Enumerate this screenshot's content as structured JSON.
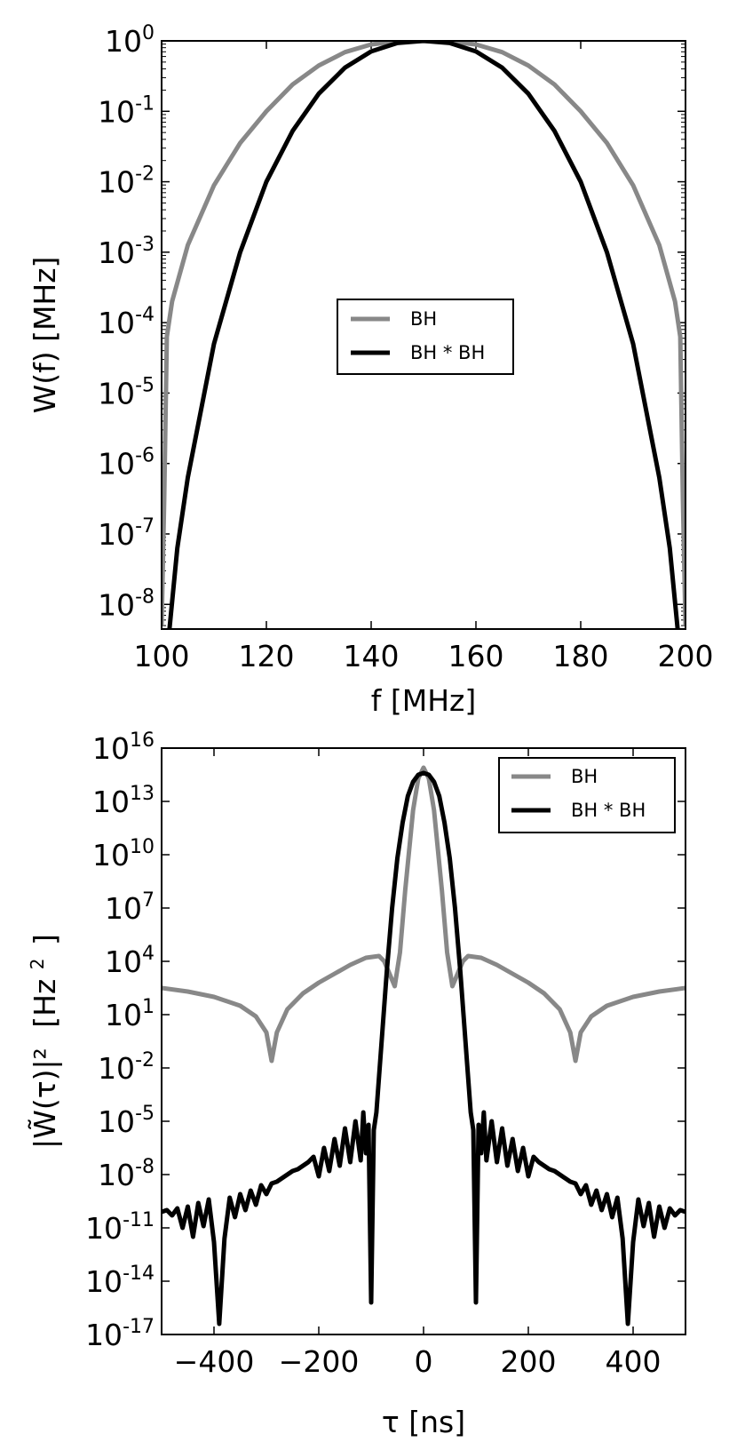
{
  "chart_data": [
    {
      "type": "line",
      "xlabel": "f [MHz]",
      "ylabel": "W(f) [MHz]",
      "xlim": [
        100,
        200
      ],
      "yscale": "log",
      "ylim_exponents": [
        -8.35,
        0
      ],
      "x_ticks": [
        "100",
        "120",
        "140",
        "160",
        "180",
        "200"
      ],
      "y_ticks": [
        {
          "base": "10",
          "exp": "0"
        },
        {
          "base": "10",
          "exp": "-1"
        },
        {
          "base": "10",
          "exp": "-2"
        },
        {
          "base": "10",
          "exp": "-3"
        },
        {
          "base": "10",
          "exp": "-4"
        },
        {
          "base": "10",
          "exp": "-5"
        },
        {
          "base": "10",
          "exp": "-6"
        },
        {
          "base": "10",
          "exp": "-7"
        },
        {
          "base": "10",
          "exp": "-8"
        }
      ],
      "legend_position": "center",
      "series": [
        {
          "name": "BH",
          "color": "#888888",
          "x": [
            100,
            100.5,
            101,
            102,
            105,
            110,
            115,
            120,
            125,
            130,
            135,
            140,
            145,
            150,
            155,
            160,
            165,
            170,
            175,
            180,
            185,
            190,
            195,
            198,
            199,
            199.5,
            200
          ],
          "log10_y": [
            -8.3,
            -6.5,
            -4.2,
            -3.7,
            -2.9,
            -2.05,
            -1.45,
            -1.0,
            -0.62,
            -0.35,
            -0.16,
            -0.05,
            -0.01,
            0,
            -0.01,
            -0.05,
            -0.16,
            -0.35,
            -0.62,
            -1.0,
            -1.45,
            -2.05,
            -2.9,
            -3.7,
            -4.2,
            -6.5,
            -8.3
          ]
        },
        {
          "name": "BH * BH",
          "color": "#000000",
          "x": [
            101.5,
            103,
            105,
            110,
            115,
            120,
            125,
            130,
            135,
            140,
            145,
            150,
            155,
            160,
            165,
            170,
            175,
            180,
            185,
            190,
            195,
            197,
            198.5
          ],
          "log10_y": [
            -8.35,
            -7.2,
            -6.2,
            -4.3,
            -3.0,
            -2.0,
            -1.28,
            -0.75,
            -0.38,
            -0.15,
            -0.03,
            0,
            -0.03,
            -0.15,
            -0.38,
            -0.75,
            -1.28,
            -2.0,
            -3.0,
            -4.3,
            -6.2,
            -7.2,
            -8.35
          ]
        }
      ]
    },
    {
      "type": "line",
      "xlabel": "τ [ns]",
      "ylabel_expr": "|W̃(τ)|²",
      "ylabel_unit": "[Hz",
      "ylabel_unit_exp": "2",
      "ylabel_unit_close": "]",
      "xlim": [
        -500,
        500
      ],
      "yscale": "log",
      "ylim_exponents": [
        -17,
        16
      ],
      "x_ticks": [
        "−400",
        "−200",
        "0",
        "200",
        "400"
      ],
      "y_ticks": [
        {
          "base": "10",
          "exp": "16"
        },
        {
          "base": "10",
          "exp": "13"
        },
        {
          "base": "10",
          "exp": "10"
        },
        {
          "base": "10",
          "exp": "7"
        },
        {
          "base": "10",
          "exp": "4"
        },
        {
          "base": "10",
          "exp": "1"
        },
        {
          "base": "10",
          "exp": "-2"
        },
        {
          "base": "10",
          "exp": "-5"
        },
        {
          "base": "10",
          "exp": "-8"
        },
        {
          "base": "10",
          "exp": "-11"
        },
        {
          "base": "10",
          "exp": "-14"
        },
        {
          "base": "10",
          "exp": "-17"
        }
      ],
      "legend_position": "upper right",
      "series": [
        {
          "name": "BH",
          "color": "#888888",
          "x": [
            -500,
            -450,
            -400,
            -350,
            -320,
            -300,
            -290,
            -280,
            -260,
            -230,
            -200,
            -170,
            -140,
            -110,
            -85,
            -75,
            -65,
            -55,
            -45,
            -35,
            -20,
            -10,
            0,
            10,
            20,
            35,
            45,
            55,
            65,
            75,
            85,
            110,
            140,
            170,
            200,
            230,
            260,
            280,
            290,
            300,
            320,
            350,
            400,
            450,
            500
          ],
          "log10_y": [
            2.5,
            2.3,
            2.0,
            1.5,
            0.9,
            0.0,
            -1.6,
            0.0,
            1.3,
            2.2,
            2.8,
            3.3,
            3.8,
            4.2,
            4.3,
            4.0,
            3.3,
            2.6,
            4.5,
            8.0,
            12.5,
            14.3,
            14.9,
            14.3,
            12.5,
            8.0,
            4.5,
            2.6,
            3.3,
            4.0,
            4.3,
            4.2,
            3.8,
            3.3,
            2.8,
            2.2,
            1.3,
            0.0,
            -1.6,
            0.0,
            0.9,
            1.5,
            2.0,
            2.3,
            2.5
          ]
        },
        {
          "name": "BH * BH",
          "color": "#000000",
          "x": [
            -500,
            -490,
            -480,
            -470,
            -460,
            -450,
            -440,
            -430,
            -420,
            -410,
            -400,
            -390,
            -380,
            -370,
            -360,
            -350,
            -340,
            -330,
            -320,
            -310,
            -300,
            -290,
            -280,
            -270,
            -260,
            -250,
            -240,
            -230,
            -220,
            -210,
            -200,
            -190,
            -180,
            -170,
            -160,
            -150,
            -140,
            -130,
            -120,
            -115,
            -110,
            -105,
            -100,
            -95,
            -90,
            -80,
            -70,
            -60,
            -50,
            -40,
            -30,
            -20,
            -10,
            0,
            10,
            20,
            30,
            40,
            50,
            60,
            70,
            80,
            90,
            95,
            100,
            105,
            110,
            115,
            120,
            130,
            140,
            150,
            160,
            170,
            180,
            190,
            200,
            210,
            220,
            230,
            240,
            250,
            260,
            270,
            280,
            290,
            300,
            310,
            320,
            330,
            340,
            350,
            360,
            370,
            380,
            390,
            400,
            410,
            420,
            430,
            440,
            450,
            460,
            470,
            480,
            490,
            500
          ],
          "log10_y": [
            -10.1,
            -10.0,
            -10.3,
            -9.9,
            -11.0,
            -9.8,
            -11.5,
            -9.6,
            -10.9,
            -9.4,
            -11.8,
            -16.4,
            -11.6,
            -9.3,
            -10.4,
            -9.1,
            -10.0,
            -8.9,
            -9.7,
            -8.6,
            -9.1,
            -8.5,
            -8.4,
            -8.2,
            -8.0,
            -7.8,
            -7.7,
            -7.5,
            -7.3,
            -7.0,
            -8.1,
            -6.5,
            -7.8,
            -6.0,
            -7.5,
            -5.4,
            -7.3,
            -5.0,
            -7.2,
            -4.5,
            -6.8,
            -5.2,
            -15.2,
            -5.5,
            -4.5,
            -0.5,
            3.5,
            7.0,
            9.8,
            11.8,
            13.3,
            14.1,
            14.5,
            14.6,
            14.5,
            14.1,
            13.3,
            11.8,
            9.8,
            7.0,
            3.5,
            -0.5,
            -4.5,
            -5.5,
            -15.2,
            -5.2,
            -6.8,
            -4.5,
            -7.2,
            -5.0,
            -7.3,
            -5.4,
            -7.5,
            -6.0,
            -7.8,
            -6.5,
            -8.1,
            -7.0,
            -7.3,
            -7.5,
            -7.7,
            -7.8,
            -8.0,
            -8.2,
            -8.4,
            -8.5,
            -9.1,
            -8.6,
            -9.7,
            -8.9,
            -10.0,
            -9.1,
            -10.4,
            -9.3,
            -11.6,
            -16.4,
            -11.8,
            -9.4,
            -10.9,
            -9.6,
            -11.5,
            -9.8,
            -11.0,
            -9.9,
            -10.3,
            -10.0,
            -10.1
          ]
        }
      ]
    }
  ]
}
